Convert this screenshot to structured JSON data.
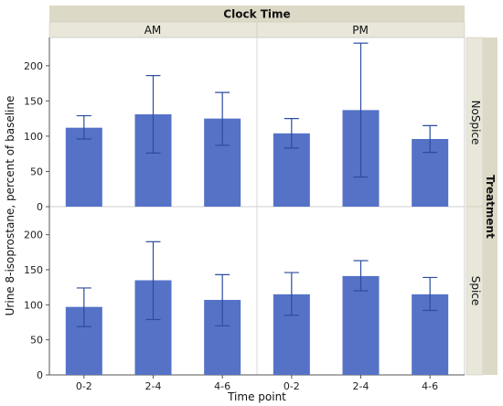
{
  "chart_data": {
    "type": "bar",
    "column_group_title": "Clock Time",
    "column_groups": [
      "AM",
      "PM"
    ],
    "row_group_title": "Treatment",
    "row_groups": [
      "NoSpice",
      "Spice"
    ],
    "categories": [
      "0-2",
      "2-4",
      "4-6"
    ],
    "xlabel": "Time point",
    "ylabel": "Urine 8-isoprostane, percent of baseline",
    "ylim": [
      0,
      240
    ],
    "yticks": [
      0,
      50,
      100,
      150,
      200
    ],
    "error_bars": true,
    "bar_color": "#5572C7",
    "error_color": "#2B4C9E",
    "panels": [
      {
        "row": "NoSpice",
        "col": "AM",
        "values": [
          112,
          131,
          125
        ],
        "err_low": [
          96,
          76,
          87
        ],
        "err_high": [
          129,
          186,
          162
        ]
      },
      {
        "row": "NoSpice",
        "col": "PM",
        "values": [
          104,
          137,
          96
        ],
        "err_low": [
          83,
          42,
          77
        ],
        "err_high": [
          125,
          232,
          115
        ]
      },
      {
        "row": "Spice",
        "col": "AM",
        "values": [
          97,
          135,
          107
        ],
        "err_low": [
          69,
          79,
          70
        ],
        "err_high": [
          124,
          190,
          143
        ]
      },
      {
        "row": "Spice",
        "col": "PM",
        "values": [
          115,
          141,
          115
        ],
        "err_low": [
          85,
          120,
          92
        ],
        "err_high": [
          146,
          163,
          139
        ]
      }
    ]
  }
}
